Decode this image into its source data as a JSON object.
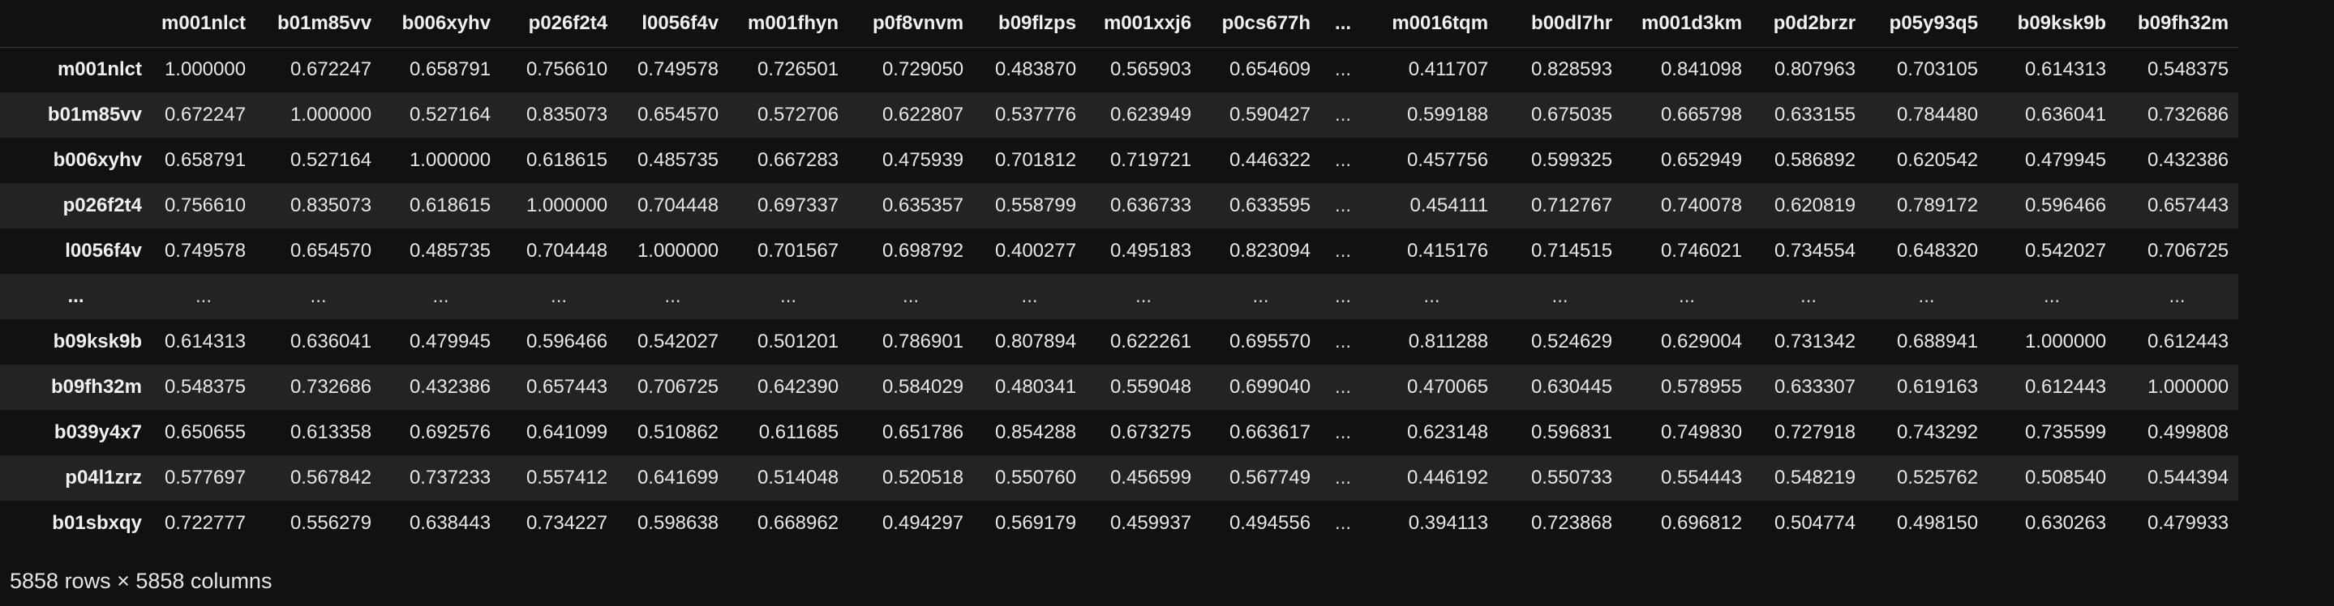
{
  "table": {
    "index_header": "",
    "columns": [
      "m001nlct",
      "b01m85vv",
      "b006xyhv",
      "p026f2t4",
      "l0056f4v",
      "m001fhyn",
      "p0f8vnvm",
      "b09flzps",
      "m001xxj6",
      "p0cs677h",
      "...",
      "m0016tqm",
      "b00dl7hr",
      "m001d3km",
      "p0d2brzr",
      "p05y93q5",
      "b09ksk9b",
      "b09fh32m"
    ],
    "rows": [
      {
        "index": "m001nlct",
        "cells": [
          "1.000000",
          "0.672247",
          "0.658791",
          "0.756610",
          "0.749578",
          "0.726501",
          "0.729050",
          "0.483870",
          "0.565903",
          "0.654609",
          "...",
          "0.411707",
          "0.828593",
          "0.841098",
          "0.807963",
          "0.703105",
          "0.614313",
          "0.548375"
        ]
      },
      {
        "index": "b01m85vv",
        "cells": [
          "0.672247",
          "1.000000",
          "0.527164",
          "0.835073",
          "0.654570",
          "0.572706",
          "0.622807",
          "0.537776",
          "0.623949",
          "0.590427",
          "...",
          "0.599188",
          "0.675035",
          "0.665798",
          "0.633155",
          "0.784480",
          "0.636041",
          "0.732686"
        ]
      },
      {
        "index": "b006xyhv",
        "cells": [
          "0.658791",
          "0.527164",
          "1.000000",
          "0.618615",
          "0.485735",
          "0.667283",
          "0.475939",
          "0.701812",
          "0.719721",
          "0.446322",
          "...",
          "0.457756",
          "0.599325",
          "0.652949",
          "0.586892",
          "0.620542",
          "0.479945",
          "0.432386"
        ]
      },
      {
        "index": "p026f2t4",
        "cells": [
          "0.756610",
          "0.835073",
          "0.618615",
          "1.000000",
          "0.704448",
          "0.697337",
          "0.635357",
          "0.558799",
          "0.636733",
          "0.633595",
          "...",
          "0.454111",
          "0.712767",
          "0.740078",
          "0.620819",
          "0.789172",
          "0.596466",
          "0.657443"
        ]
      },
      {
        "index": "l0056f4v",
        "cells": [
          "0.749578",
          "0.654570",
          "0.485735",
          "0.704448",
          "1.000000",
          "0.701567",
          "0.698792",
          "0.400277",
          "0.495183",
          "0.823094",
          "...",
          "0.415176",
          "0.714515",
          "0.746021",
          "0.734554",
          "0.648320",
          "0.542027",
          "0.706725"
        ]
      },
      {
        "index": "...",
        "cells": [
          "...",
          "...",
          "...",
          "...",
          "...",
          "...",
          "...",
          "...",
          "...",
          "...",
          "...",
          "...",
          "...",
          "...",
          "...",
          "...",
          "...",
          "..."
        ]
      },
      {
        "index": "b09ksk9b",
        "cells": [
          "0.614313",
          "0.636041",
          "0.479945",
          "0.596466",
          "0.542027",
          "0.501201",
          "0.786901",
          "0.807894",
          "0.622261",
          "0.695570",
          "...",
          "0.811288",
          "0.524629",
          "0.629004",
          "0.731342",
          "0.688941",
          "1.000000",
          "0.612443"
        ]
      },
      {
        "index": "b09fh32m",
        "cells": [
          "0.548375",
          "0.732686",
          "0.432386",
          "0.657443",
          "0.706725",
          "0.642390",
          "0.584029",
          "0.480341",
          "0.559048",
          "0.699040",
          "...",
          "0.470065",
          "0.630445",
          "0.578955",
          "0.633307",
          "0.619163",
          "0.612443",
          "1.000000"
        ]
      },
      {
        "index": "b039y4x7",
        "cells": [
          "0.650655",
          "0.613358",
          "0.692576",
          "0.641099",
          "0.510862",
          "0.611685",
          "0.651786",
          "0.854288",
          "0.673275",
          "0.663617",
          "...",
          "0.623148",
          "0.596831",
          "0.749830",
          "0.727918",
          "0.743292",
          "0.735599",
          "0.499808"
        ]
      },
      {
        "index": "p04l1zrz",
        "cells": [
          "0.577697",
          "0.567842",
          "0.737233",
          "0.557412",
          "0.641699",
          "0.514048",
          "0.520518",
          "0.550760",
          "0.456599",
          "0.567749",
          "...",
          "0.446192",
          "0.550733",
          "0.554443",
          "0.548219",
          "0.525762",
          "0.508540",
          "0.544394"
        ]
      },
      {
        "index": "b01sbxqy",
        "cells": [
          "0.722777",
          "0.556279",
          "0.638443",
          "0.734227",
          "0.598638",
          "0.668962",
          "0.494297",
          "0.569179",
          "0.459937",
          "0.494556",
          "...",
          "0.394113",
          "0.723868",
          "0.696812",
          "0.504774",
          "0.498150",
          "0.630263",
          "0.479933"
        ]
      }
    ]
  },
  "footer": {
    "shape_text": "5858 rows × 5858 columns"
  },
  "colors": {
    "background": "#111111",
    "stripe": "#232323",
    "text": "#e6e6e6"
  }
}
